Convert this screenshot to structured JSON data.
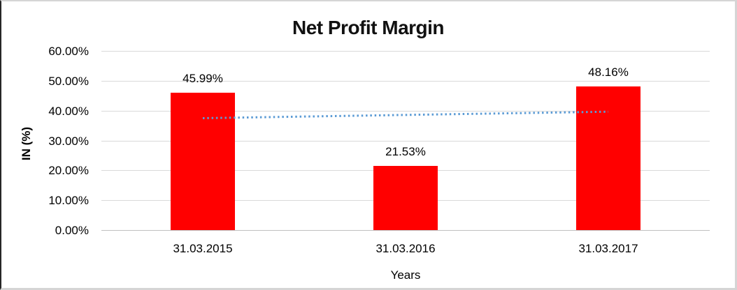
{
  "chart_data": {
    "type": "bar",
    "title": "Net Profit Margin",
    "xlabel": "Years",
    "ylabel": "IN (%)",
    "categories": [
      "31.03.2015",
      "31.03.2016",
      "31.03.2017"
    ],
    "values": [
      45.99,
      21.53,
      48.16
    ],
    "data_labels": [
      "45.99%",
      "21.53%",
      "48.16%"
    ],
    "ylim": [
      0,
      60
    ],
    "ytick_values": [
      0,
      10,
      20,
      30,
      40,
      50,
      60
    ],
    "ytick_labels": [
      "0.00%",
      "10.00%",
      "20.00%",
      "30.00%",
      "40.00%",
      "50.00%",
      "60.00%"
    ],
    "grid": true,
    "legend_position": "none",
    "colors": {
      "bar": "#FF0000",
      "trendline": "#5B9BD5",
      "gridline": "#D9D9D9",
      "axis_line": "#BFBFBF",
      "text": "#000000"
    },
    "trendline": {
      "type": "linear",
      "style": "dotted",
      "start_value": 37.47,
      "end_value": 39.64
    }
  }
}
